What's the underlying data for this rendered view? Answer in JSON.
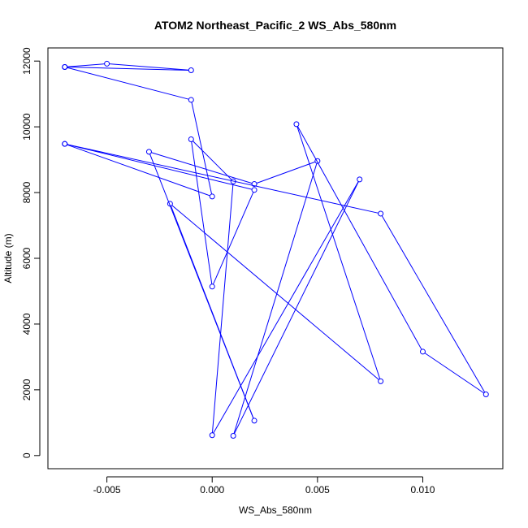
{
  "chart_data": {
    "type": "line",
    "title": "ATOM2 Northeast_Pacific_2 WS_Abs_580nm",
    "xlabel": "WS_Abs_580nm",
    "ylabel": "Altitude (m)",
    "xlim": [
      -0.0078,
      0.0138
    ],
    "ylim": [
      -400,
      12400
    ],
    "x_ticks": [
      -0.005,
      0.0,
      0.005,
      0.01
    ],
    "x_tick_labels": [
      "-0.005",
      "0.000",
      "0.005",
      "0.010"
    ],
    "y_ticks": [
      0,
      2000,
      4000,
      6000,
      8000,
      10000,
      12000
    ],
    "y_tick_labels": [
      "0",
      "2000",
      "4000",
      "6000",
      "8000",
      "10000",
      "12000"
    ],
    "grid": false,
    "series": [
      {
        "color": "#0000ff",
        "marker": "open-circle",
        "points": [
          {
            "x": -0.007,
            "y": 11820
          },
          {
            "x": -0.005,
            "y": 11920
          },
          {
            "x": -0.001,
            "y": 11720
          },
          {
            "x": -0.007,
            "y": 11820
          },
          {
            "x": -0.001,
            "y": 10820
          },
          {
            "x": 0.0,
            "y": 7880
          },
          {
            "x": -0.007,
            "y": 9480
          },
          {
            "x": 0.002,
            "y": 8080
          },
          {
            "x": 0.0,
            "y": 5140
          },
          {
            "x": -0.001,
            "y": 9620
          },
          {
            "x": 0.001,
            "y": 8340
          },
          {
            "x": 0.0,
            "y": 620
          },
          {
            "x": 0.007,
            "y": 8400
          },
          {
            "x": 0.001,
            "y": 600
          },
          {
            "x": 0.005,
            "y": 8960
          },
          {
            "x": 0.002,
            "y": 8260
          },
          {
            "x": -0.003,
            "y": 9240
          },
          {
            "x": 0.002,
            "y": 1060
          },
          {
            "x": -0.002,
            "y": 7660
          },
          {
            "x": 0.008,
            "y": 2260
          },
          {
            "x": 0.004,
            "y": 10080
          },
          {
            "x": 0.01,
            "y": 3160
          },
          {
            "x": 0.013,
            "y": 1860
          },
          {
            "x": 0.008,
            "y": 7360
          },
          {
            "x": -0.007,
            "y": 9480
          }
        ]
      }
    ]
  }
}
